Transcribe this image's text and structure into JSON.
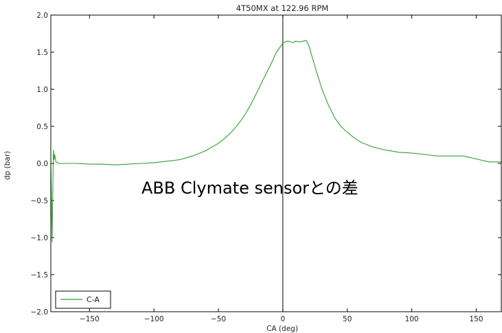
{
  "chart_data": {
    "type": "line",
    "title": "4T50MX at 122.96 RPM",
    "xlabel": "CA (deg)",
    "ylabel": "dp (bar)",
    "xlim": [
      -180,
      170
    ],
    "ylim": [
      -2.0,
      2.0
    ],
    "x_ticks": [
      -150,
      -100,
      -50,
      0,
      50,
      100,
      150
    ],
    "y_ticks": [
      -2.0,
      -1.5,
      -1.0,
      -0.5,
      0.0,
      0.5,
      1.0,
      1.5,
      2.0
    ],
    "x_tick_labels": [
      "−150",
      "−100",
      "−50",
      "0",
      "50",
      "100",
      "150"
    ],
    "y_tick_labels": [
      "−2.0",
      "−1.5",
      "−1.0",
      "−0.5",
      "0.0",
      "0.5",
      "1.0",
      "1.5",
      "2.0"
    ],
    "vline_x": 0,
    "grid": false,
    "legend_position": "lower-left",
    "annotation": "ABB Clymate sensorとの差",
    "series": [
      {
        "name": "C-A",
        "color": "#2ca02c",
        "x": [
          -180,
          -179,
          -178.5,
          -178,
          -177.5,
          -177,
          -176,
          -175,
          -174,
          -170,
          -160,
          -150,
          -140,
          -130,
          -120,
          -110,
          -100,
          -90,
          -80,
          -70,
          -60,
          -50,
          -45,
          -40,
          -35,
          -30,
          -25,
          -20,
          -15,
          -10,
          -5,
          0,
          2,
          4,
          6,
          8,
          10,
          12,
          14,
          16,
          18,
          20,
          22,
          25,
          30,
          35,
          40,
          45,
          50,
          55,
          60,
          70,
          80,
          90,
          100,
          110,
          120,
          130,
          140,
          150,
          160,
          170
        ],
        "y": [
          0.0,
          -1.06,
          -0.4,
          0.18,
          0.05,
          0.12,
          0.02,
          0.01,
          0.0,
          0.0,
          0.0,
          -0.01,
          -0.01,
          -0.02,
          -0.01,
          0.0,
          0.01,
          0.03,
          0.05,
          0.1,
          0.17,
          0.27,
          0.34,
          0.42,
          0.52,
          0.64,
          0.79,
          0.96,
          1.14,
          1.31,
          1.5,
          1.62,
          1.64,
          1.65,
          1.64,
          1.63,
          1.65,
          1.64,
          1.64,
          1.65,
          1.66,
          1.6,
          1.48,
          1.3,
          1.02,
          0.8,
          0.62,
          0.5,
          0.42,
          0.35,
          0.29,
          0.22,
          0.18,
          0.15,
          0.14,
          0.12,
          0.1,
          0.1,
          0.1,
          0.06,
          0.02,
          0.02
        ]
      }
    ]
  }
}
